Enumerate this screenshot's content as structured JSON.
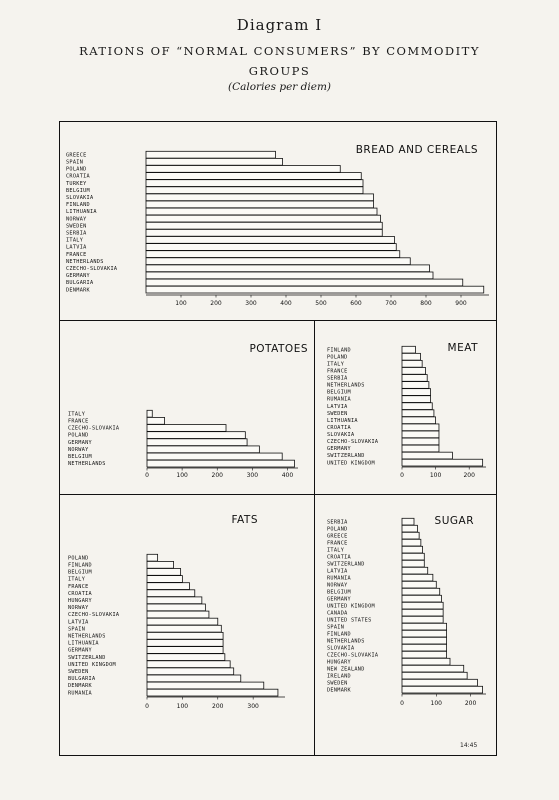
{
  "header": {
    "diagram_label": "Diagram I",
    "title_line1": "RATIONS OF “NORMAL CONSUMERS” BY COMMODITY",
    "title_line2": "GROUPS",
    "subtitle": "(Calories per diem)"
  },
  "plate_number": "14:45",
  "chart_data": [
    {
      "type": "bar",
      "orientation": "horizontal",
      "title": "BREAD AND CEREALS",
      "categories": [
        "GREECE",
        "SPAIN",
        "POLAND",
        "CROATIA",
        "TURKEY",
        "BELGIUM",
        "SLOVAKIA",
        "FINLAND",
        "LITHUANIA",
        "NORWAY",
        "SWEDEN",
        "SERBIA",
        "ITALY",
        "LATVIA",
        "FRANCE",
        "NETHERLANDS",
        "CZECHO-SLOVAKIA",
        "GERMANY",
        "BULGARIA",
        "DENMARK"
      ],
      "values": [
        370,
        390,
        555,
        615,
        620,
        620,
        650,
        650,
        660,
        670,
        675,
        675,
        710,
        715,
        725,
        755,
        810,
        820,
        905,
        965
      ],
      "xlim": [
        0,
        980
      ],
      "xticks": [
        100,
        200,
        300,
        400,
        500,
        600,
        700,
        800,
        900
      ]
    },
    {
      "type": "bar",
      "orientation": "horizontal",
      "title": "POTATOES",
      "categories": [
        "ITALY",
        "FRANCE",
        "CZECHO-SLOVAKIA",
        "POLAND",
        "GERMANY",
        "NORWAY",
        "BELGIUM",
        "NETHERLANDS"
      ],
      "values": [
        15,
        50,
        225,
        280,
        285,
        320,
        385,
        420
      ],
      "xlim": [
        0,
        430
      ],
      "xticks": [
        0,
        100,
        200,
        300,
        400
      ]
    },
    {
      "type": "bar",
      "orientation": "horizontal",
      "title": "MEAT",
      "categories": [
        "FINLAND",
        "POLAND",
        "ITALY",
        "FRANCE",
        "SERBIA",
        "NETHERLANDS",
        "BELGIUM",
        "RUMANIA",
        "LATVIA",
        "SWEDEN",
        "LITHUANIA",
        "CROATIA",
        "SLOVAKIA",
        "CZECHO-SLOVAKIA",
        "GERMANY",
        "SWITZERLAND",
        "UNITED KINGDOM"
      ],
      "values": [
        40,
        55,
        60,
        70,
        75,
        80,
        85,
        85,
        90,
        95,
        100,
        110,
        110,
        110,
        110,
        150,
        240
      ],
      "xlim": [
        0,
        250
      ],
      "xticks": [
        0,
        100,
        200
      ]
    },
    {
      "type": "bar",
      "orientation": "horizontal",
      "title": "FATS",
      "categories": [
        "POLAND",
        "FINLAND",
        "BELGIUM",
        "ITALY",
        "FRANCE",
        "CROATIA",
        "HUNGARY",
        "NORWAY",
        "CZECHO-SLOVAKIA",
        "LATVIA",
        "SPAIN",
        "NETHERLANDS",
        "LITHUANIA",
        "GERMANY",
        "SWITZERLAND",
        "UNITED KINGDOM",
        "SWEDEN",
        "BULGARIA",
        "DENMARK",
        "RUMANIA"
      ],
      "values": [
        30,
        75,
        95,
        100,
        120,
        135,
        155,
        165,
        175,
        200,
        210,
        215,
        215,
        215,
        220,
        235,
        245,
        265,
        330,
        370
      ],
      "xlim": [
        0,
        390
      ],
      "xticks": [
        0,
        100,
        200,
        300
      ]
    },
    {
      "type": "bar",
      "orientation": "horizontal",
      "title": "SUGAR",
      "categories": [
        "SERBIA",
        "POLAND",
        "GREECE",
        "FRANCE",
        "ITALY",
        "CROATIA",
        "SWITZERLAND",
        "LATVIA",
        "RUMANIA",
        "NORWAY",
        "BELGIUM",
        "GERMANY",
        "UNITED KINGDOM",
        "CANADA",
        "UNITED STATES",
        "SPAIN",
        "FINLAND",
        "NETHERLANDS",
        "SLOVAKIA",
        "CZECHO-SLOVAKIA",
        "HUNGARY",
        "NEW ZEALAND",
        "IRELAND",
        "SWEDEN",
        "DENMARK"
      ],
      "values": [
        35,
        45,
        50,
        55,
        60,
        65,
        65,
        75,
        90,
        100,
        110,
        115,
        120,
        120,
        120,
        130,
        130,
        130,
        130,
        130,
        140,
        180,
        190,
        220,
        235
      ],
      "xlim": [
        0,
        245
      ],
      "xticks": [
        0,
        100,
        200
      ]
    }
  ]
}
